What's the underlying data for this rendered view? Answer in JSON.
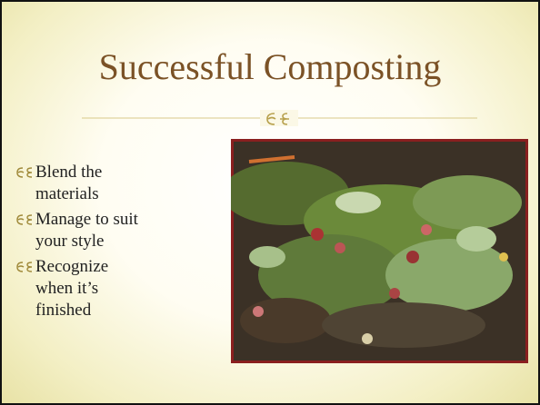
{
  "title": "Successful Composting",
  "bullets": [
    "Blend the materials",
    "Manage to suit your style",
    "Recognize when it’s finished"
  ]
}
